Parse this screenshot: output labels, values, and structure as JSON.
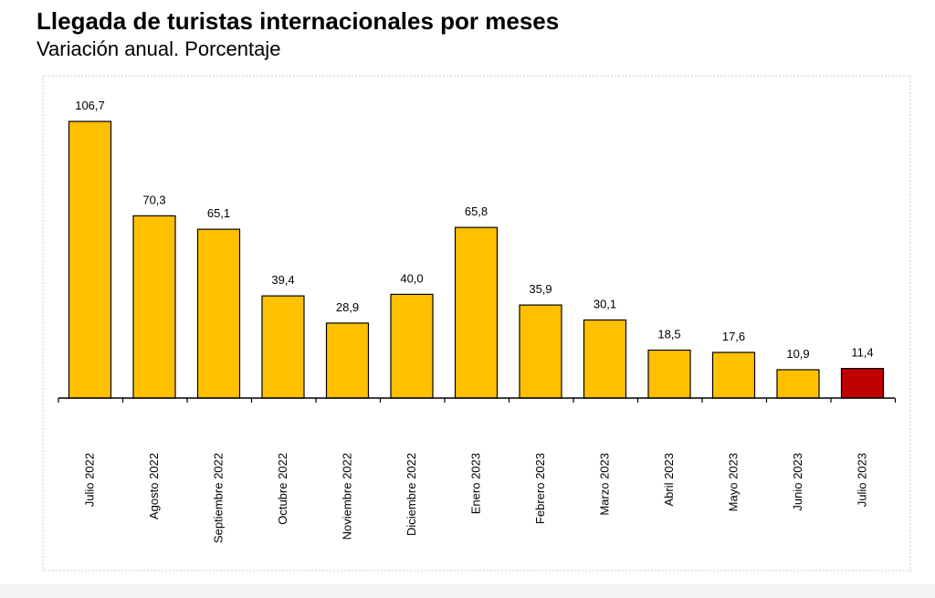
{
  "title": "Llegada de turistas internacionales por meses",
  "subtitle": "Variación anual. Porcentaje",
  "chart_data": {
    "type": "bar",
    "title": "Llegada de turistas internacionales por meses",
    "subtitle": "Variación anual. Porcentaje",
    "categories": [
      "Julio 2022",
      "Agosto 2022",
      "Septiembre 2022",
      "Octubre 2022",
      "Noviembre 2022",
      "Diciembre 2022",
      "Enero 2023",
      "Febrero 2023",
      "Marzo 2023",
      "Abril 2023",
      "Mayo 2023",
      "Junio 2023",
      "Julio 2023"
    ],
    "values": [
      106.7,
      70.3,
      65.1,
      39.4,
      28.9,
      40.0,
      65.8,
      35.9,
      30.1,
      18.5,
      17.6,
      10.9,
      11.4
    ],
    "value_labels": [
      "106,7",
      "70,3",
      "65,1",
      "39,4",
      "28,9",
      "40,0",
      "65,8",
      "35,9",
      "30,1",
      "18,5",
      "17,6",
      "10,9",
      "11,4"
    ],
    "colors": [
      "#FFC000",
      "#FFC000",
      "#FFC000",
      "#FFC000",
      "#FFC000",
      "#FFC000",
      "#FFC000",
      "#FFC000",
      "#FFC000",
      "#FFC000",
      "#FFC000",
      "#FFC000",
      "#C00000"
    ],
    "xlabel": "",
    "ylabel": "",
    "ylim": [
      0,
      106.7
    ],
    "grid": false,
    "legend": "none"
  }
}
